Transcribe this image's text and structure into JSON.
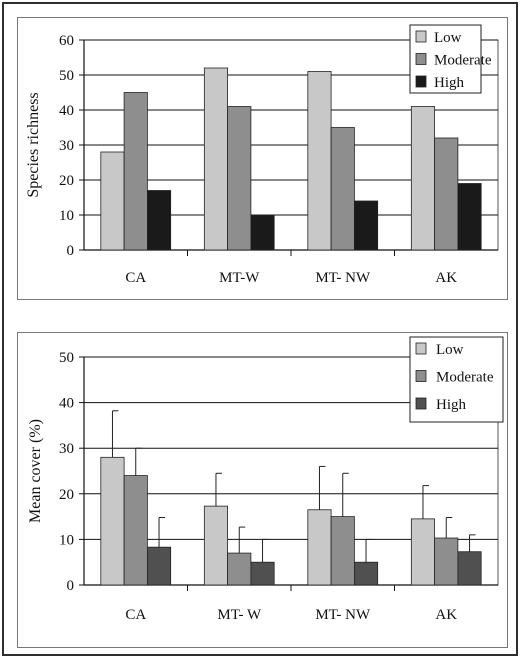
{
  "chart_data": [
    {
      "type": "bar",
      "title": "",
      "xlabel": "",
      "ylabel": "Species richness",
      "ylim": [
        0,
        60
      ],
      "yticks": [
        0,
        10,
        20,
        30,
        40,
        50,
        60
      ],
      "grid": true,
      "legend_position": "top-right",
      "categories": [
        "CA",
        "MT-W",
        "MT- NW",
        "AK"
      ],
      "series": [
        {
          "name": "Low",
          "color": "#c8c8c8",
          "values": [
            28,
            52,
            51,
            41
          ]
        },
        {
          "name": "Moderate",
          "color": "#8e8e8e",
          "values": [
            45,
            41,
            35,
            32
          ]
        },
        {
          "name": "High",
          "color": "#1a1a1a",
          "values": [
            17,
            10,
            14,
            19
          ]
        }
      ]
    },
    {
      "type": "bar",
      "title": "",
      "xlabel": "",
      "ylabel": "Mean cover (%)",
      "ylim": [
        0,
        50
      ],
      "yticks": [
        0,
        10,
        20,
        30,
        40,
        50
      ],
      "grid": true,
      "legend_position": "top-right",
      "categories": [
        "CA",
        "MT- W",
        "MT- NW",
        "AK"
      ],
      "series": [
        {
          "name": "Low",
          "color": "#c8c8c8",
          "values": [
            28,
            17.3,
            16.5,
            14.5
          ],
          "error": [
            10.2,
            7.2,
            9.5,
            7.3
          ]
        },
        {
          "name": "Moderate",
          "color": "#8e8e8e",
          "values": [
            24,
            7,
            15,
            10.3
          ],
          "error": [
            6,
            5.7,
            9.5,
            4.5
          ]
        },
        {
          "name": "High",
          "color": "#505050",
          "values": [
            8.3,
            5,
            5,
            7.3
          ],
          "error": [
            6.5,
            5,
            5,
            3.7
          ]
        }
      ]
    }
  ]
}
